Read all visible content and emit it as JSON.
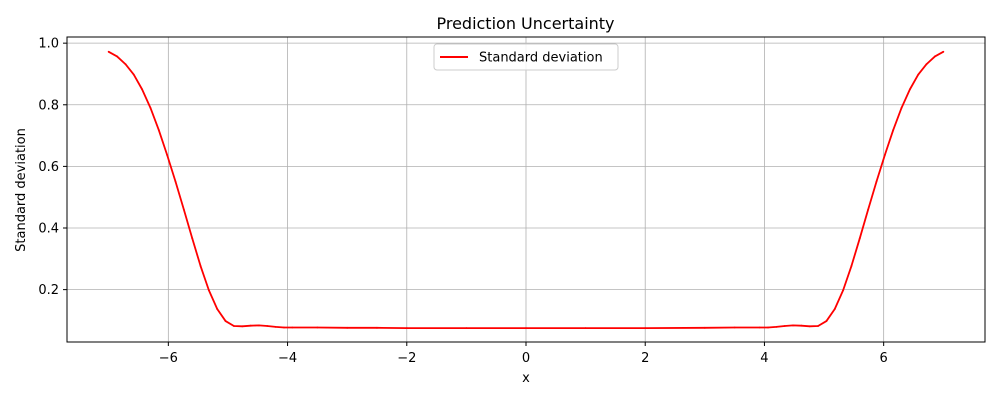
{
  "chart_data": {
    "type": "line",
    "title": "Prediction Uncertainty",
    "xlabel": "x",
    "ylabel": "Standard deviation",
    "xlim": [
      -7.7,
      7.7
    ],
    "ylim": [
      0.03,
      1.02
    ],
    "xticks": [
      -6,
      -4,
      -2,
      0,
      2,
      4,
      6
    ],
    "xtick_labels": [
      "−6",
      "−4",
      "−2",
      "0",
      "2",
      "4",
      "6"
    ],
    "yticks": [
      0.2,
      0.4,
      0.6,
      0.8,
      1.0
    ],
    "ytick_labels": [
      "0.2",
      "0.4",
      "0.6",
      "0.8",
      "1.0"
    ],
    "grid": true,
    "legend": {
      "position": "upper center",
      "entries": [
        "Standard deviation"
      ]
    },
    "series": [
      {
        "name": "Standard deviation",
        "color": "#ff0000",
        "x": [
          -7.0,
          -6.86,
          -6.72,
          -6.58,
          -6.44,
          -6.3,
          -6.16,
          -6.02,
          -5.88,
          -5.74,
          -5.6,
          -5.46,
          -5.32,
          -5.18,
          -5.04,
          -4.9,
          -4.76,
          -4.62,
          -4.48,
          -4.34,
          -4.2,
          -4.06,
          -3.92,
          -3.5,
          -3.0,
          -2.5,
          -2.0,
          -1.0,
          0.0,
          1.0,
          2.0,
          3.0,
          3.5,
          3.92,
          4.06,
          4.2,
          4.34,
          4.48,
          4.62,
          4.76,
          4.9,
          5.04,
          5.18,
          5.32,
          5.46,
          5.6,
          5.74,
          5.88,
          6.02,
          6.16,
          6.3,
          6.44,
          6.58,
          6.72,
          6.86,
          7.0
        ],
        "values": [
          0.972,
          0.957,
          0.932,
          0.898,
          0.85,
          0.79,
          0.718,
          0.637,
          0.551,
          0.46,
          0.367,
          0.277,
          0.198,
          0.137,
          0.098,
          0.082,
          0.081,
          0.083,
          0.084,
          0.082,
          0.079,
          0.077,
          0.077,
          0.077,
          0.076,
          0.076,
          0.075,
          0.075,
          0.075,
          0.075,
          0.075,
          0.076,
          0.077,
          0.077,
          0.077,
          0.079,
          0.082,
          0.084,
          0.083,
          0.081,
          0.082,
          0.098,
          0.137,
          0.198,
          0.277,
          0.367,
          0.46,
          0.551,
          0.637,
          0.718,
          0.79,
          0.85,
          0.898,
          0.932,
          0.957,
          0.972
        ]
      }
    ]
  }
}
